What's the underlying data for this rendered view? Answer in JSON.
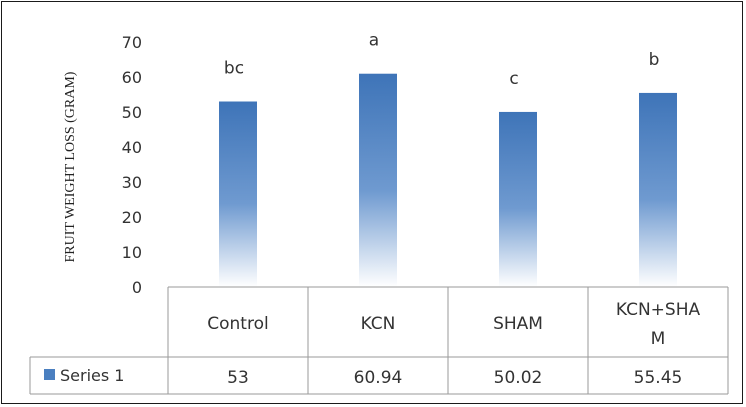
{
  "chart_data": {
    "type": "bar",
    "ylabel": "FRUIT WEIGHT LOSS (GRAM)",
    "ylim": [
      0,
      70
    ],
    "yticks": [
      "0",
      "10",
      "20",
      "30",
      "40",
      "50",
      "60",
      "70"
    ],
    "categories": [
      "Control",
      "KCN",
      "SHAM",
      "KCN+SHA M"
    ],
    "series": [
      {
        "name": "Series 1",
        "values": [
          53,
          60.94,
          50.02,
          55.45
        ],
        "value_labels": [
          "53",
          "60.94",
          "50.02",
          "55.45"
        ],
        "color": "#4a7fc0"
      }
    ],
    "annotations": [
      "bc",
      "a",
      "c",
      "b"
    ],
    "legend": "data table, bottom-left",
    "grid": false
  }
}
